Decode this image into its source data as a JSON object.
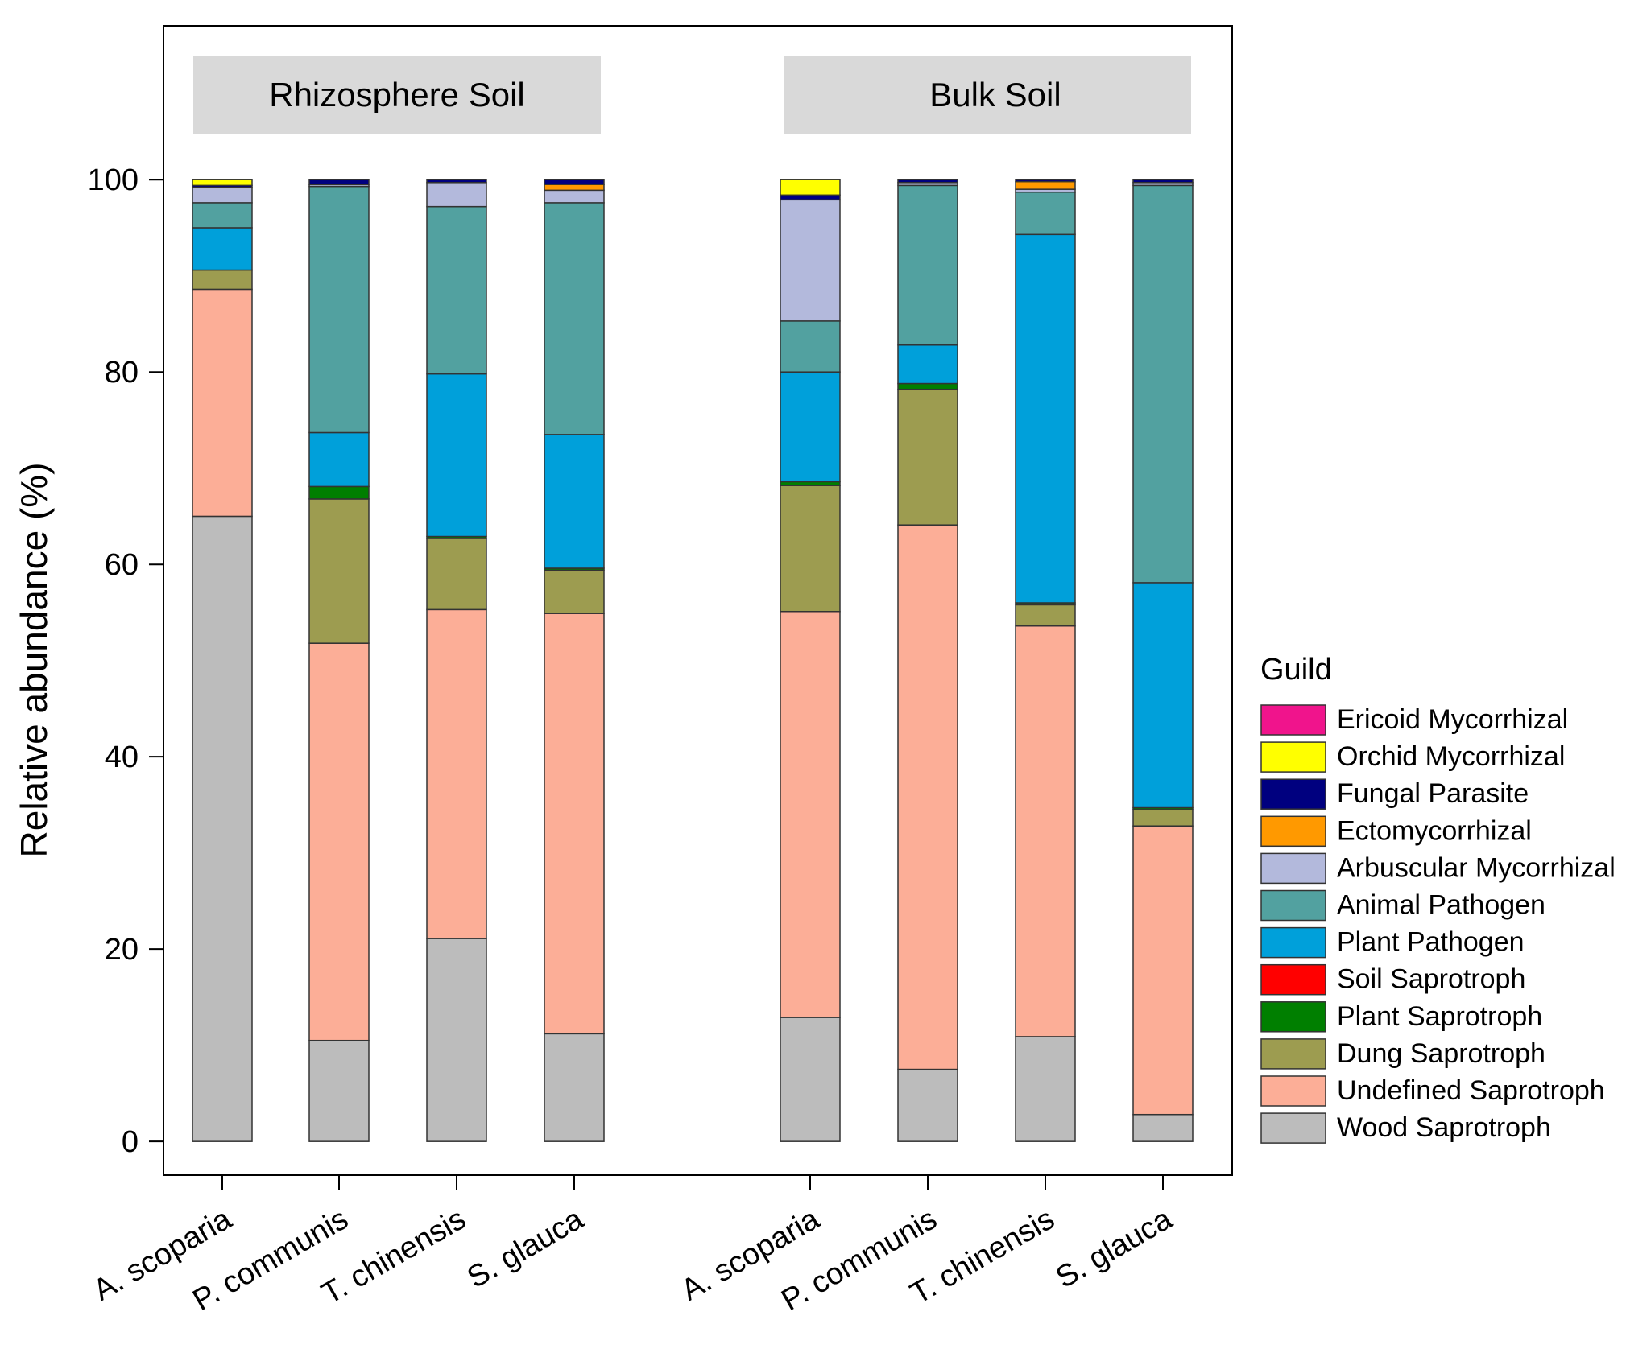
{
  "chart_data": {
    "type": "bar",
    "stacked": true,
    "ylabel": "Relative abundance (%)",
    "ylim": [
      -3.5,
      116
    ],
    "yticks": [
      0,
      20,
      40,
      60,
      80,
      100
    ],
    "grid": false,
    "legend": {
      "title": "Guild",
      "placement": "right",
      "entries": [
        "Ericoid Mycorrhizal",
        "Orchid Mycorrhizal",
        "Fungal Parasite",
        "Ectomycorrhizal",
        "Arbuscular Mycorrhizal",
        "Animal Pathogen",
        "Plant Pathogen",
        "Soil Saprotroph",
        "Plant Saprotroph",
        "Dung Saprotroph",
        "Undefined Saprotroph",
        "Wood Saprotroph"
      ]
    },
    "colors": {
      "Ericoid Mycorrhizal": "#f0148c",
      "Orchid Mycorrhizal": "#ffff00",
      "Fungal Parasite": "#00007f",
      "Ectomycorrhizal": "#ff9900",
      "Arbuscular Mycorrhizal": "#b3b9dc",
      "Animal Pathogen": "#52a1a0",
      "Plant Pathogen": "#00a0da",
      "Soil Saprotroph": "#ff0000",
      "Plant Saprotroph": "#007f00",
      "Dung Saprotroph": "#9d9c50",
      "Undefined Saprotroph": "#fcae97",
      "Wood Saprotroph": "#bcbcbc"
    },
    "stack_order": [
      "Wood Saprotroph",
      "Undefined Saprotroph",
      "Dung Saprotroph",
      "Plant Saprotroph",
      "Soil Saprotroph",
      "Plant Pathogen",
      "Animal Pathogen",
      "Arbuscular Mycorrhizal",
      "Ectomycorrhizal",
      "Fungal Parasite",
      "Orchid Mycorrhizal",
      "Ericoid Mycorrhizal"
    ],
    "groups": [
      {
        "title": "Rhizosphere Soil",
        "categories": [
          "A. scoparia",
          "P. communis",
          "T. chinensis",
          "S. glauca"
        ],
        "bars": [
          {
            "Wood Saprotroph": 65.0,
            "Undefined Saprotroph": 23.6,
            "Dung Saprotroph": 2.0,
            "Plant Saprotroph": 0,
            "Soil Saprotroph": 0,
            "Plant Pathogen": 4.4,
            "Animal Pathogen": 2.6,
            "Arbuscular Mycorrhizal": 1.6,
            "Ectomycorrhizal": 0,
            "Fungal Parasite": 0.2,
            "Orchid Mycorrhizal": 0.6,
            "Ericoid Mycorrhizal": 0
          },
          {
            "Wood Saprotroph": 10.5,
            "Undefined Saprotroph": 41.3,
            "Dung Saprotroph": 15.0,
            "Plant Saprotroph": 1.3,
            "Soil Saprotroph": 0,
            "Plant Pathogen": 5.6,
            "Animal Pathogen": 25.6,
            "Arbuscular Mycorrhizal": 0.2,
            "Ectomycorrhizal": 0,
            "Fungal Parasite": 0.5,
            "Orchid Mycorrhizal": 0,
            "Ericoid Mycorrhizal": 0
          },
          {
            "Wood Saprotroph": 21.1,
            "Undefined Saprotroph": 34.2,
            "Dung Saprotroph": 7.4,
            "Plant Saprotroph": 0.2,
            "Soil Saprotroph": 0,
            "Plant Pathogen": 16.9,
            "Animal Pathogen": 17.4,
            "Arbuscular Mycorrhizal": 2.5,
            "Ectomycorrhizal": 0,
            "Fungal Parasite": 0.3,
            "Orchid Mycorrhizal": 0,
            "Ericoid Mycorrhizal": 0
          },
          {
            "Wood Saprotroph": 11.2,
            "Undefined Saprotroph": 43.7,
            "Dung Saprotroph": 4.5,
            "Plant Saprotroph": 0.2,
            "Soil Saprotroph": 0,
            "Plant Pathogen": 13.9,
            "Animal Pathogen": 24.1,
            "Arbuscular Mycorrhizal": 1.3,
            "Ectomycorrhizal": 0.6,
            "Fungal Parasite": 0.5,
            "Orchid Mycorrhizal": 0,
            "Ericoid Mycorrhizal": 0
          }
        ]
      },
      {
        "title": "Bulk Soil",
        "categories": [
          "A. scoparia",
          "P. communis",
          "T. chinensis",
          "S. glauca"
        ],
        "bars": [
          {
            "Wood Saprotroph": 12.9,
            "Undefined Saprotroph": 42.2,
            "Dung Saprotroph": 13.1,
            "Plant Saprotroph": 0.4,
            "Soil Saprotroph": 0,
            "Plant Pathogen": 11.4,
            "Animal Pathogen": 5.3,
            "Arbuscular Mycorrhizal": 12.6,
            "Ectomycorrhizal": 0,
            "Fungal Parasite": 0.5,
            "Orchid Mycorrhizal": 1.6,
            "Ericoid Mycorrhizal": 0
          },
          {
            "Wood Saprotroph": 7.5,
            "Undefined Saprotroph": 56.6,
            "Dung Saprotroph": 14.1,
            "Plant Saprotroph": 0.6,
            "Soil Saprotroph": 0,
            "Plant Pathogen": 4.0,
            "Animal Pathogen": 16.6,
            "Arbuscular Mycorrhizal": 0.3,
            "Ectomycorrhizal": 0,
            "Fungal Parasite": 0.3,
            "Orchid Mycorrhizal": 0,
            "Ericoid Mycorrhizal": 0
          },
          {
            "Wood Saprotroph": 10.9,
            "Undefined Saprotroph": 42.7,
            "Dung Saprotroph": 2.2,
            "Plant Saprotroph": 0.2,
            "Soil Saprotroph": 0,
            "Plant Pathogen": 38.3,
            "Animal Pathogen": 4.4,
            "Arbuscular Mycorrhizal": 0.3,
            "Ectomycorrhizal": 0.8,
            "Fungal Parasite": 0.2,
            "Orchid Mycorrhizal": 0,
            "Ericoid Mycorrhizal": 0
          },
          {
            "Wood Saprotroph": 2.8,
            "Undefined Saprotroph": 30.0,
            "Dung Saprotroph": 1.7,
            "Plant Saprotroph": 0.2,
            "Soil Saprotroph": 0,
            "Plant Pathogen": 23.4,
            "Animal Pathogen": 41.3,
            "Arbuscular Mycorrhizal": 0.3,
            "Ectomycorrhizal": 0,
            "Fungal Parasite": 0.3,
            "Orchid Mycorrhizal": 0,
            "Ericoid Mycorrhizal": 0
          }
        ]
      }
    ]
  }
}
